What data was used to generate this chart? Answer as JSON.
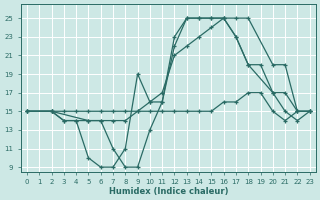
{
  "xlabel": "Humidex (Indice chaleur)",
  "xlim": [
    -0.5,
    23.5
  ],
  "ylim": [
    8.5,
    26.5
  ],
  "xticks": [
    0,
    1,
    2,
    3,
    4,
    5,
    6,
    7,
    8,
    9,
    10,
    11,
    12,
    13,
    14,
    15,
    16,
    17,
    18,
    19,
    20,
    21,
    22,
    23
  ],
  "yticks": [
    9,
    11,
    13,
    15,
    17,
    19,
    21,
    23,
    25
  ],
  "bg_color": "#cde8e5",
  "grid_color": "#b8d8d4",
  "line_color": "#2a6b65",
  "curves": [
    {
      "x": [
        0,
        2,
        3,
        4,
        5,
        6,
        7,
        8,
        9,
        10,
        11,
        12,
        13,
        14,
        15,
        16,
        17,
        18,
        20,
        21,
        22,
        23
      ],
      "y": [
        15,
        15,
        15,
        15,
        15,
        15,
        15,
        15,
        15,
        16,
        17,
        21,
        22,
        23,
        24,
        25,
        25,
        25,
        20,
        20,
        15,
        15
      ]
    },
    {
      "x": [
        0,
        2,
        5,
        6,
        7,
        8,
        9,
        10,
        11,
        12,
        13,
        14,
        15,
        16,
        17,
        18,
        20,
        21,
        22,
        23
      ],
      "y": [
        15,
        15,
        14,
        14,
        11,
        9,
        9,
        13,
        16,
        22,
        25,
        25,
        25,
        25,
        23,
        20,
        17,
        17,
        15,
        15
      ]
    },
    {
      "x": [
        0,
        2,
        3,
        4,
        5,
        6,
        7,
        8,
        9,
        10,
        11,
        12,
        13,
        14,
        15,
        16,
        17,
        18,
        19,
        20,
        21,
        22,
        23
      ],
      "y": [
        15,
        15,
        14,
        14,
        10,
        9,
        9,
        11,
        19,
        16,
        16,
        23,
        25,
        25,
        25,
        25,
        23,
        20,
        20,
        17,
        15,
        14,
        15
      ]
    },
    {
      "x": [
        0,
        2,
        3,
        4,
        5,
        6,
        7,
        8,
        9,
        10,
        11,
        12,
        13,
        14,
        15,
        16,
        17,
        18,
        19,
        20,
        21,
        22,
        23
      ],
      "y": [
        15,
        15,
        14,
        14,
        14,
        14,
        14,
        14,
        15,
        15,
        15,
        15,
        15,
        15,
        15,
        16,
        16,
        17,
        17,
        15,
        14,
        15,
        15
      ]
    }
  ]
}
